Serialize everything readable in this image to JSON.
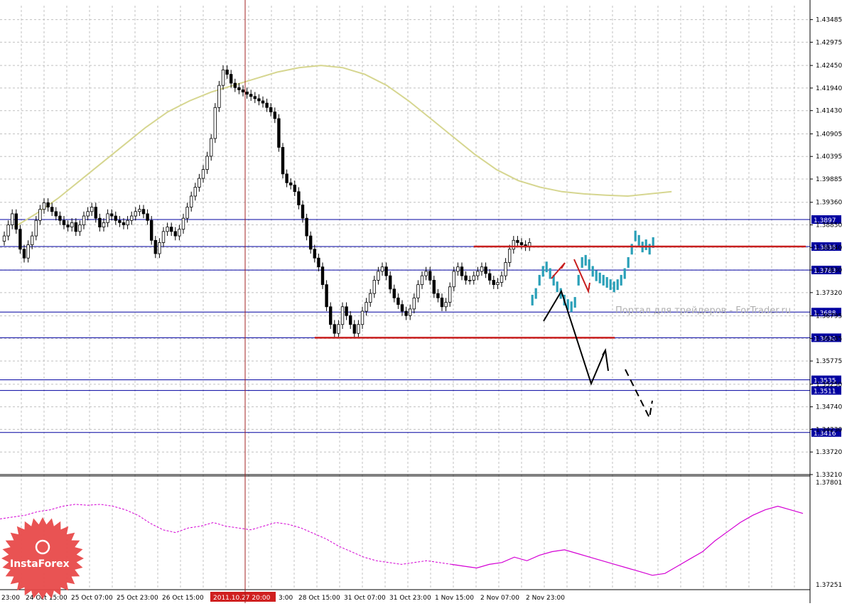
{
  "chart_data": {
    "type": "candlestick",
    "symbol": "",
    "price_axis": {
      "ticks": [
        1.43485,
        1.42975,
        1.4245,
        1.4194,
        1.4143,
        1.40905,
        1.40395,
        1.39885,
        1.3936,
        1.3885,
        1.3834,
        1.3783,
        1.3732,
        1.36795,
        1.36285,
        1.35775,
        1.3525,
        1.3474,
        1.3423,
        1.3372,
        1.3321
      ],
      "tick_labels": [
        "1.43485",
        "1.42975",
        "1.42450",
        "1.41940",
        "1.41430",
        "1.40905",
        "1.40395",
        "1.39885",
        "1.39360",
        "1.38850",
        "1.38340",
        "1.37830",
        "1.37320",
        "1.36795",
        "1.36285",
        "1.35775",
        "1.35250",
        "1.34740",
        "1.34230",
        "1.33720",
        "1.33210"
      ],
      "range": [
        1.3321,
        1.438
      ]
    },
    "indicator_axis": {
      "tick_labels": [
        "1.37801",
        "1.37251"
      ],
      "range": [
        1.37251,
        1.37801
      ]
    },
    "time_axis": {
      "labels": [
        "23:00",
        "24 Oct 15:00",
        "25 Oct 07:00",
        "25 Oct 23:00",
        "26 Oct 15:00",
        "2011.10.27 20:00",
        "3:00",
        "28 Oct 15:00",
        "31 Oct 07:00",
        "31 Oct 23:00",
        "1 Nov 15:00",
        "2 Nov 07:00",
        "2 Nov 23:00"
      ],
      "highlight_label": "2011.10.27 20:00"
    },
    "horizontal_levels": [
      {
        "value": 1.3897,
        "label": "1.3897",
        "color": "#0000a0"
      },
      {
        "value": 1.3836,
        "label": "1.3836",
        "color": "#0000a0"
      },
      {
        "value": 1.3783,
        "label": "1.3783",
        "color": "#0000a0"
      },
      {
        "value": 1.3688,
        "label": "1.3688",
        "color": "#0000a0"
      },
      {
        "value": 1.363,
        "label": "1.3630",
        "color": "#0000a0"
      },
      {
        "value": 1.3535,
        "label": "1.3535",
        "color": "#0000a0"
      },
      {
        "value": 1.3511,
        "label": "1.3511",
        "color": "#0000a0"
      },
      {
        "value": 1.3416,
        "label": "1.3416",
        "color": "#0000a0"
      }
    ],
    "support_resistance": [
      {
        "value": 1.363,
        "from_bar": 78,
        "to_bar": 132,
        "color": "#c81e1e"
      },
      {
        "value": 1.3836,
        "from_bar": 118,
        "to_bar": 180,
        "color": "#c81e1e"
      }
    ],
    "candles_close": [
      1.386,
      1.3885,
      1.391,
      1.3875,
      1.383,
      1.381,
      1.384,
      1.386,
      1.3895,
      1.392,
      1.3935,
      1.3925,
      1.3915,
      1.3905,
      1.3895,
      1.3885,
      1.388,
      1.389,
      1.387,
      1.3885,
      1.3905,
      1.3915,
      1.3925,
      1.39,
      1.388,
      1.389,
      1.391,
      1.3905,
      1.3895,
      1.389,
      1.3885,
      1.3895,
      1.3905,
      1.3915,
      1.392,
      1.391,
      1.3895,
      1.385,
      1.382,
      1.3845,
      1.387,
      1.388,
      1.387,
      1.386,
      1.3875,
      1.39,
      1.3925,
      1.395,
      1.397,
      1.399,
      1.401,
      1.404,
      1.408,
      1.415,
      1.42,
      1.4235,
      1.4225,
      1.4205,
      1.4195,
      1.419,
      1.4185,
      1.418,
      1.4175,
      1.417,
      1.4165,
      1.416,
      1.415,
      1.414,
      1.4125,
      1.406,
      1.4,
      1.398,
      1.3975,
      1.396,
      1.393,
      1.39,
      1.386,
      1.383,
      1.381,
      1.379,
      1.375,
      1.37,
      1.366,
      1.364,
      1.366,
      1.37,
      1.368,
      1.366,
      1.364,
      1.366,
      1.369,
      1.371,
      1.373,
      1.376,
      1.378,
      1.379,
      1.377,
      1.374,
      1.372,
      1.3705,
      1.369,
      1.368,
      1.3695,
      1.372,
      1.375,
      1.377,
      1.378,
      1.376,
      1.373,
      1.372,
      1.37,
      1.371,
      1.3745,
      1.378,
      1.379,
      1.377,
      1.376,
      1.376,
      1.377,
      1.378,
      1.379,
      1.3775,
      1.376,
      1.375,
      1.3755,
      1.377,
      1.38,
      1.383,
      1.385,
      1.3845,
      1.384,
      1.3836,
      1.3845
    ],
    "moving_average": [
      1.388,
      1.391,
      1.3945,
      1.3985,
      1.4025,
      1.4065,
      1.4105,
      1.414,
      1.4165,
      1.4185,
      1.42,
      1.4215,
      1.423,
      1.424,
      1.4245,
      1.424,
      1.4225,
      1.42,
      1.4165,
      1.4125,
      1.4085,
      1.4045,
      1.401,
      1.3985,
      1.397,
      1.396,
      1.3955,
      1.3952,
      1.395,
      1.3955,
      1.396
    ],
    "watermark": "Портал для трейдеров - ForTrader.ru",
    "logo": "InstaForex"
  },
  "colors": {
    "background": "#ffffff",
    "grid": "#c0c0c0",
    "candle_up": "#000000",
    "candle_down": "#000000",
    "ma": "#d6d690",
    "levels": "#0000a0",
    "support": "#c81e1e",
    "forecast_bars": "#2aa0b8",
    "oscillator": "#d400d4",
    "cursor_line": "#a02020",
    "logo": "#e84a4a"
  }
}
